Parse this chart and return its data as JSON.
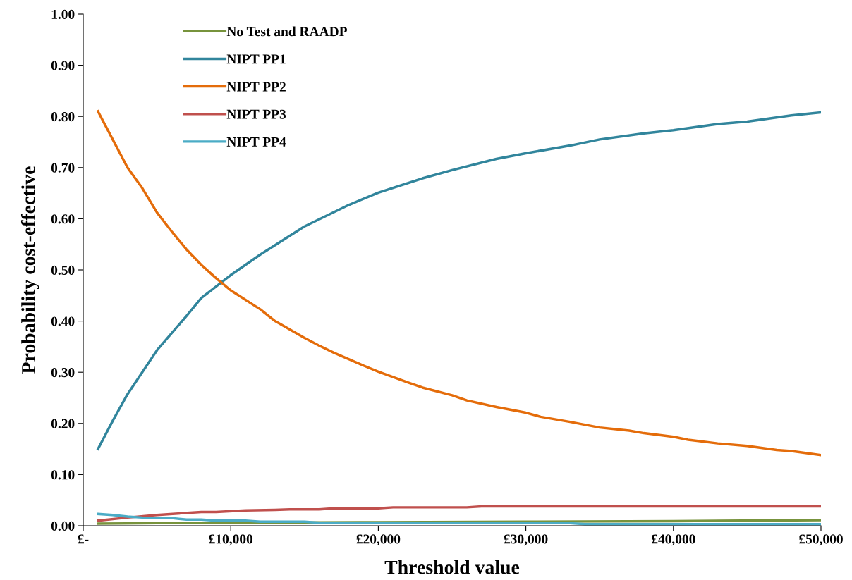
{
  "chart_data": {
    "type": "line",
    "xlabel": "Threshold value",
    "ylabel": "Probability cost-effective",
    "xlim": [
      0,
      50000
    ],
    "ylim": [
      0,
      1
    ],
    "xticks": [
      {
        "value": 0,
        "label": "£-"
      },
      {
        "value": 10000,
        "label": "£10,000"
      },
      {
        "value": 20000,
        "label": "£20,000"
      },
      {
        "value": 30000,
        "label": "£30,000"
      },
      {
        "value": 40000,
        "label": "£40,000"
      },
      {
        "value": 50000,
        "label": "£50,000"
      }
    ],
    "yticks": [
      {
        "value": 0,
        "label": "0.00"
      },
      {
        "value": 0.1,
        "label": "0.10"
      },
      {
        "value": 0.2,
        "label": "0.20"
      },
      {
        "value": 0.3,
        "label": "0.30"
      },
      {
        "value": 0.4,
        "label": "0.40"
      },
      {
        "value": 0.5,
        "label": "0.50"
      },
      {
        "value": 0.6,
        "label": "0.60"
      },
      {
        "value": 0.7,
        "label": "0.70"
      },
      {
        "value": 0.8,
        "label": "0.80"
      },
      {
        "value": 0.9,
        "label": "0.90"
      },
      {
        "value": 1,
        "label": "1.00"
      }
    ],
    "grid": false,
    "legend": "top left",
    "marker": "none",
    "line_style": "solid",
    "series": [
      {
        "name": "No Test and RAADP",
        "color": "#77933c",
        "x": [
          1000,
          5000,
          10000,
          20000,
          30000,
          40000,
          50000
        ],
        "values": [
          0.004,
          0.005,
          0.006,
          0.007,
          0.008,
          0.009,
          0.011
        ]
      },
      {
        "name": "NIPT PP1",
        "color": "#31859c",
        "x": [
          1000,
          2000,
          3000,
          5000,
          7000,
          8000,
          10000,
          12000,
          15000,
          18000,
          20000,
          23000,
          25000,
          28000,
          30000,
          33000,
          35000,
          38000,
          40000,
          43000,
          45000,
          48000,
          50000
        ],
        "values": [
          0.15,
          0.205,
          0.257,
          0.343,
          0.41,
          0.445,
          0.49,
          0.53,
          0.585,
          0.627,
          0.651,
          0.679,
          0.695,
          0.717,
          0.728,
          0.743,
          0.755,
          0.767,
          0.773,
          0.785,
          0.79,
          0.802,
          0.808
        ]
      },
      {
        "name": "NIPT PP2",
        "color": "#e46c0a",
        "x": [
          1000,
          2000,
          3000,
          4000,
          5000,
          6000,
          7000,
          8000,
          9000,
          10000,
          12000,
          13000,
          15000,
          16000,
          17000,
          19000,
          20000,
          22000,
          23000,
          25000,
          26000,
          28000,
          30000,
          31000,
          33000,
          35000,
          37000,
          38000,
          40000,
          41000,
          43000,
          45000,
          47000,
          48000,
          50000
        ],
        "values": [
          0.81,
          0.755,
          0.7,
          0.66,
          0.612,
          0.575,
          0.54,
          0.51,
          0.484,
          0.46,
          0.423,
          0.4,
          0.367,
          0.352,
          0.338,
          0.313,
          0.301,
          0.28,
          0.27,
          0.255,
          0.245,
          0.232,
          0.221,
          0.213,
          0.203,
          0.192,
          0.186,
          0.181,
          0.174,
          0.168,
          0.161,
          0.156,
          0.148,
          0.146,
          0.138
        ]
      },
      {
        "name": "NIPT PP3",
        "color": "#c0504d",
        "x": [
          1000,
          3000,
          5000,
          8000,
          9000,
          11000,
          13000,
          14000,
          16000,
          17000,
          20000,
          21000,
          26000,
          27000,
          50000
        ],
        "values": [
          0.01,
          0.016,
          0.021,
          0.027,
          0.027,
          0.03,
          0.031,
          0.032,
          0.032,
          0.034,
          0.034,
          0.036,
          0.036,
          0.038,
          0.038
        ]
      },
      {
        "name": "NIPT PP4",
        "color": "#4bacc6",
        "x": [
          1000,
          2000,
          3000,
          4000,
          6000,
          7000,
          8000,
          9000,
          11000,
          12000,
          15000,
          16000,
          20000,
          21000,
          33000,
          34000,
          50000
        ],
        "values": [
          0.023,
          0.021,
          0.018,
          0.016,
          0.015,
          0.012,
          0.012,
          0.01,
          0.01,
          0.008,
          0.008,
          0.006,
          0.006,
          0.005,
          0.005,
          0.003,
          0.003
        ]
      }
    ]
  }
}
